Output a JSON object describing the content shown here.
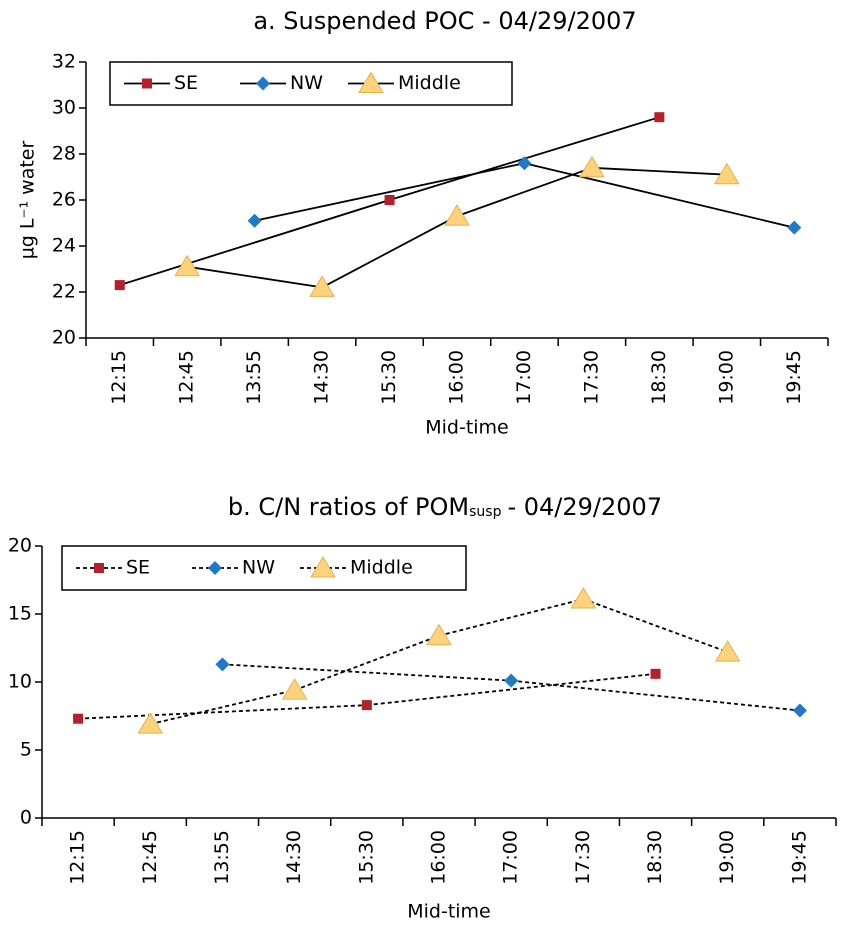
{
  "chart_data": [
    {
      "type": "line",
      "title": "a. Suspended POC - 04/29/2007",
      "y_label": "µg L⁻¹ water",
      "x_label": "Mid-time",
      "categories": [
        "12:15",
        "12:45",
        "13:55",
        "14:30",
        "15:30",
        "16:00",
        "17:00",
        "17:30",
        "18:30",
        "19:00",
        "19:45"
      ],
      "series": [
        {
          "name": "SE",
          "color": "#b5202a",
          "marker": "square",
          "values": [
            22.3,
            null,
            null,
            null,
            26.0,
            null,
            null,
            null,
            29.6,
            null,
            null
          ]
        },
        {
          "name": "NW",
          "color": "#1f78c8",
          "marker": "diamond",
          "values": [
            null,
            null,
            25.1,
            null,
            null,
            null,
            27.6,
            null,
            null,
            null,
            24.8
          ]
        },
        {
          "name": "Middle",
          "color": "#fcd27a",
          "marker": "triangle",
          "values": [
            null,
            23.1,
            null,
            22.2,
            null,
            25.3,
            null,
            27.4,
            null,
            27.1,
            null
          ]
        }
      ],
      "ylim": [
        20,
        32
      ],
      "yticks": [
        20,
        22,
        24,
        26,
        28,
        30,
        32
      ],
      "line_style": "solid",
      "legend": "top-left"
    },
    {
      "type": "line",
      "title": [
        "b. C/N ratios of POM",
        "susp",
        "- 04/29/2007"
      ],
      "x_label": "Mid-time",
      "categories": [
        "12:15",
        "12:45",
        "13:55",
        "14:30",
        "15:30",
        "16:00",
        "17:00",
        "17:30",
        "18:30",
        "19:00",
        "19:45"
      ],
      "series": [
        {
          "name": "SE",
          "color": "#b5202a",
          "marker": "square",
          "values": [
            7.3,
            null,
            null,
            null,
            8.3,
            null,
            null,
            null,
            10.6,
            null,
            null
          ]
        },
        {
          "name": "NW",
          "color": "#1f78c8",
          "marker": "diamond",
          "values": [
            null,
            null,
            11.3,
            null,
            null,
            null,
            10.1,
            null,
            null,
            null,
            7.9
          ]
        },
        {
          "name": "Middle",
          "color": "#fcd27a",
          "marker": "triangle",
          "values": [
            null,
            6.9,
            null,
            9.4,
            null,
            13.4,
            null,
            16.1,
            null,
            12.2,
            null
          ]
        }
      ],
      "ylim": [
        0,
        20
      ],
      "yticks": [
        0,
        5,
        10,
        15,
        20
      ],
      "line_style": "dashed",
      "legend": "top-left"
    }
  ]
}
